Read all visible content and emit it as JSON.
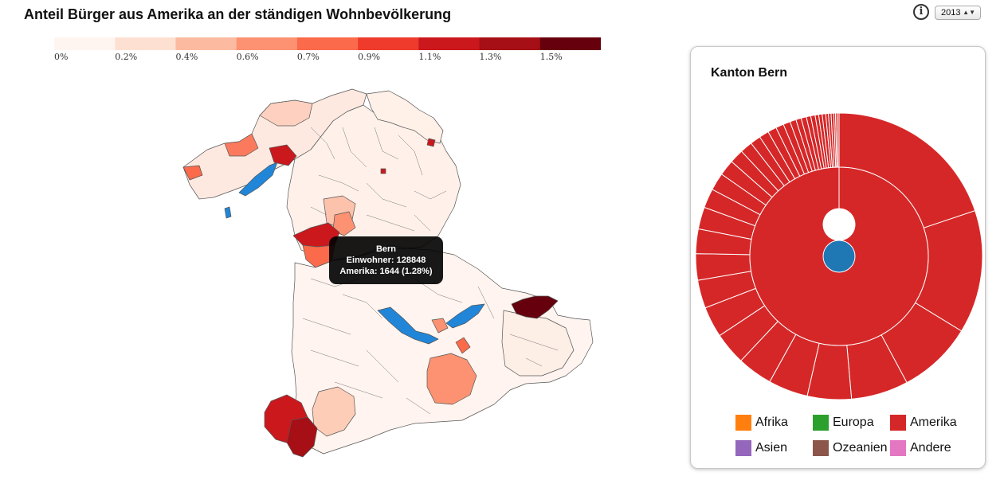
{
  "title": "Anteil Bürger aus Amerika an der ständigen Wohnbevölkerung",
  "year_select": {
    "value": "2013"
  },
  "info_icon": "info-icon",
  "legend": {
    "colors": [
      "#fff5f0",
      "#fee0d2",
      "#fcbba1",
      "#fc9272",
      "#fb6a4a",
      "#ef3b2c",
      "#cb181d",
      "#a50f15",
      "#67000d"
    ],
    "labels": [
      "0%",
      "0.2%",
      "0.4%",
      "0.6%",
      "0.7%",
      "0.9%",
      "1.1%",
      "1.3%",
      "1.5%"
    ]
  },
  "tooltip": {
    "name": "Bern",
    "residents": "Einwohner: 128848",
    "america": "Amerika: 1644 (1.28%)"
  },
  "panel": {
    "title": "Kanton Bern",
    "legend": [
      {
        "label": "Afrika",
        "color": "#ff7f0e"
      },
      {
        "label": "Europa",
        "color": "#2ca02c"
      },
      {
        "label": "Amerika",
        "color": "#d62728"
      },
      {
        "label": "Asien",
        "color": "#9467bd"
      },
      {
        "label": "Ozeanien",
        "color": "#8c564b"
      },
      {
        "label": "Andere",
        "color": "#e377c2"
      }
    ]
  },
  "chart_data": {
    "type": "sunburst",
    "title": "Kanton Bern",
    "center": {
      "label": "Kanton Bern",
      "color": "#1f77b4"
    },
    "inner_ring": [
      {
        "label": "Amerika",
        "share": 1.0,
        "color": "#d62728"
      }
    ],
    "outer_ring": {
      "color": "#d62728",
      "segment_shares": [
        0.2,
        0.14,
        0.085,
        0.065,
        0.05,
        0.045,
        0.04,
        0.037,
        0.035,
        0.032,
        0.03,
        0.028,
        0.025,
        0.022,
        0.02,
        0.018,
        0.016,
        0.014,
        0.012,
        0.011,
        0.01,
        0.009,
        0.008,
        0.007,
        0.006,
        0.006,
        0.005,
        0.005,
        0.004,
        0.004,
        0.004,
        0.003,
        0.003,
        0.003,
        0.002,
        0.002,
        0.002
      ]
    }
  }
}
